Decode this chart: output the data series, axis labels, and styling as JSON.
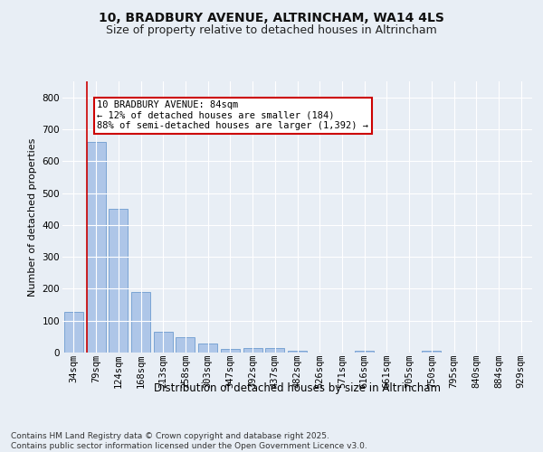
{
  "title1": "10, BRADBURY AVENUE, ALTRINCHAM, WA14 4LS",
  "title2": "Size of property relative to detached houses in Altrincham",
  "xlabel": "Distribution of detached houses by size in Altrincham",
  "ylabel": "Number of detached properties",
  "categories": [
    "34sqm",
    "79sqm",
    "124sqm",
    "168sqm",
    "213sqm",
    "258sqm",
    "303sqm",
    "347sqm",
    "392sqm",
    "437sqm",
    "482sqm",
    "526sqm",
    "571sqm",
    "616sqm",
    "661sqm",
    "705sqm",
    "750sqm",
    "795sqm",
    "840sqm",
    "884sqm",
    "929sqm"
  ],
  "values": [
    128,
    660,
    450,
    190,
    65,
    48,
    27,
    12,
    14,
    13,
    6,
    0,
    0,
    5,
    0,
    0,
    7,
    0,
    0,
    0,
    0
  ],
  "bar_color": "#aec6e8",
  "bar_edge_color": "#5b8fc9",
  "vline_color": "#cc0000",
  "annotation_text": "10 BRADBURY AVENUE: 84sqm\n← 12% of detached houses are smaller (184)\n88% of semi-detached houses are larger (1,392) →",
  "annotation_box_color": "#ffffff",
  "annotation_box_edgecolor": "#cc0000",
  "ylim": [
    0,
    850
  ],
  "yticks": [
    0,
    100,
    200,
    300,
    400,
    500,
    600,
    700,
    800
  ],
  "bg_color": "#e8eef5",
  "plot_bg_color": "#e8eef5",
  "grid_color": "#ffffff",
  "footer_text": "Contains HM Land Registry data © Crown copyright and database right 2025.\nContains public sector information licensed under the Open Government Licence v3.0.",
  "title1_fontsize": 10,
  "title2_fontsize": 9,
  "xlabel_fontsize": 8.5,
  "ylabel_fontsize": 8,
  "tick_fontsize": 7.5,
  "annotation_fontsize": 7.5,
  "footer_fontsize": 6.5
}
